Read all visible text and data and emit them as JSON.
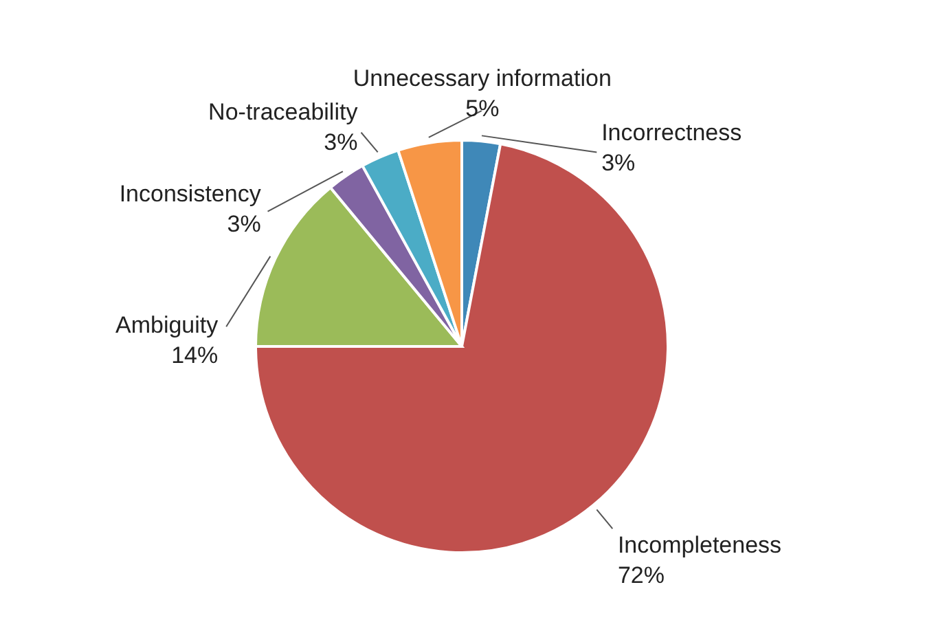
{
  "chart_data": {
    "type": "pie",
    "categories": [
      "Incorrectness",
      "Incompleteness",
      "Ambiguity",
      "Inconsistency",
      "No-traceability",
      "Unnecessary information"
    ],
    "values": [
      3,
      72,
      14,
      3,
      3,
      5
    ],
    "value_labels": [
      "3%",
      "72%",
      "14%",
      "3%",
      "3%",
      "5%"
    ],
    "colors": [
      "#3f88b8",
      "#c0504d",
      "#9bbb59",
      "#8064a2",
      "#4bacc6",
      "#f79646"
    ]
  }
}
